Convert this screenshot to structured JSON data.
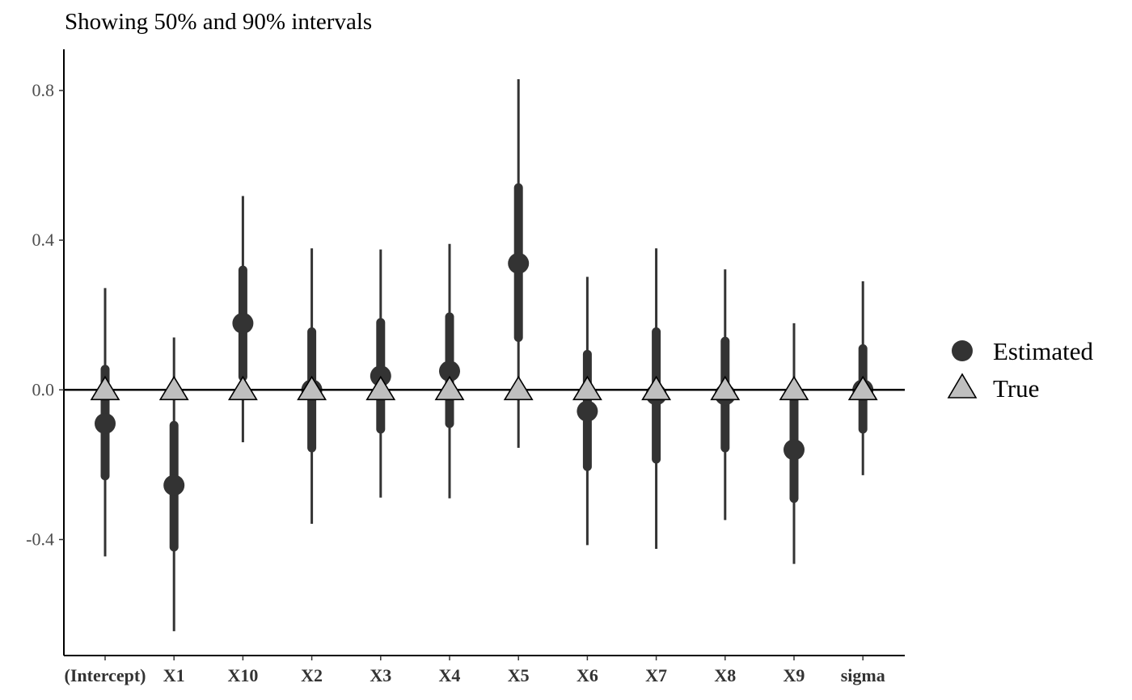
{
  "chart_data": {
    "type": "interval",
    "title": "Showing 50% and 90% intervals",
    "xlabel": "",
    "ylabel": "",
    "categories": [
      "(Intercept)",
      "X1",
      "X10",
      "X2",
      "X3",
      "X4",
      "X5",
      "X6",
      "X7",
      "X8",
      "X9",
      "sigma"
    ],
    "ylim": [
      -0.71,
      0.91
    ],
    "yticks": [
      -0.4,
      0.0,
      0.4,
      0.8
    ],
    "ytick_labels": [
      "-0.4",
      "0.0",
      "0.4",
      "0.8"
    ],
    "reference_line": 0.0,
    "series": [
      {
        "name": "Estimated",
        "marker": "circle",
        "color": "#333333",
        "values": [
          -0.09,
          -0.255,
          0.178,
          0.0,
          0.037,
          0.05,
          0.338,
          -0.057,
          -0.013,
          -0.013,
          -0.16,
          0.0
        ],
        "inner_interval_50": [
          [
            -0.23,
            0.055
          ],
          [
            -0.42,
            -0.095
          ],
          [
            0.035,
            0.32
          ],
          [
            -0.155,
            0.155
          ],
          [
            -0.105,
            0.18
          ],
          [
            -0.09,
            0.195
          ],
          [
            0.14,
            0.54
          ],
          [
            -0.205,
            0.095
          ],
          [
            -0.185,
            0.155
          ],
          [
            -0.155,
            0.13
          ],
          [
            -0.29,
            0.0
          ],
          [
            -0.105,
            0.11
          ]
        ],
        "outer_interval_90": [
          [
            -0.445,
            0.272
          ],
          [
            -0.645,
            0.14
          ],
          [
            -0.14,
            0.518
          ],
          [
            -0.358,
            0.378
          ],
          [
            -0.288,
            0.375
          ],
          [
            -0.29,
            0.39
          ],
          [
            -0.155,
            0.83
          ],
          [
            -0.415,
            0.302
          ],
          [
            -0.425,
            0.378
          ],
          [
            -0.348,
            0.322
          ],
          [
            -0.465,
            0.178
          ],
          [
            -0.228,
            0.29
          ]
        ]
      },
      {
        "name": "True",
        "marker": "triangle",
        "color": "#bfbfbf",
        "values": [
          0,
          0,
          0,
          0,
          0,
          0,
          0,
          0,
          0,
          0,
          0,
          0
        ]
      }
    ],
    "legend": {
      "position": "right",
      "entries": [
        "Estimated",
        "True"
      ]
    },
    "grid": false
  }
}
